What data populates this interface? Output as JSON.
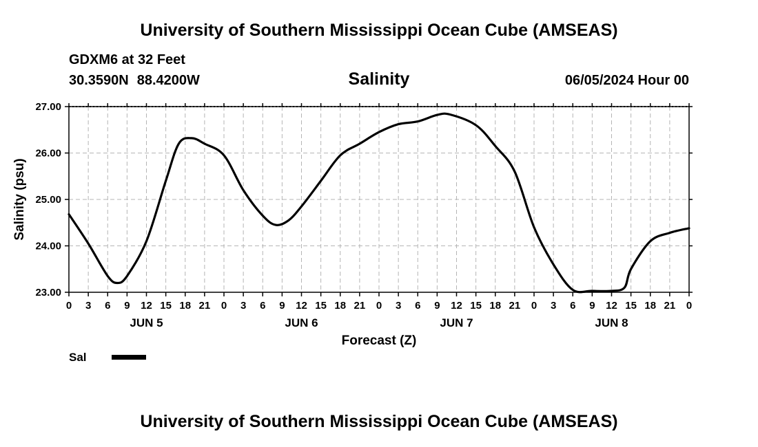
{
  "header": {
    "title_top": "University of Southern Mississippi Ocean Cube (AMSEAS)",
    "station": "GDXM6 at 32 Feet",
    "lat": "30.3590N",
    "lon": "88.4200W",
    "run_time": "06/05/2024 Hour 00",
    "title_bottom": "University of Southern Mississippi Ocean Cube (AMSEAS)"
  },
  "legend": {
    "label": "Sal",
    "color": "#000000"
  },
  "chart_data": {
    "type": "line",
    "title": "Salinity",
    "xlabel": "Forecast (Z)",
    "ylabel": "Salinity (psu)",
    "ylim": [
      23.0,
      27.0
    ],
    "xlim_hours": [
      0,
      96
    ],
    "grid": true,
    "y_ticks": [
      "23.00",
      "24.00",
      "25.00",
      "26.00",
      "27.00"
    ],
    "x_tick_hours": [
      0,
      3,
      6,
      9,
      12,
      15,
      18,
      21,
      24,
      27,
      30,
      33,
      36,
      39,
      42,
      45,
      48,
      51,
      54,
      57,
      60,
      63,
      66,
      69,
      72,
      75,
      78,
      81,
      84,
      87,
      90,
      93,
      96
    ],
    "x_tick_labels": [
      "0",
      "3",
      "6",
      "9",
      "12",
      "15",
      "18",
      "21",
      "0",
      "3",
      "6",
      "9",
      "12",
      "15",
      "18",
      "21",
      "0",
      "3",
      "6",
      "9",
      "12",
      "15",
      "18",
      "21",
      "0",
      "3",
      "6",
      "9",
      "12",
      "15",
      "18",
      "21",
      "0"
    ],
    "day_labels": [
      {
        "label": "JUN 5",
        "hour": 12
      },
      {
        "label": "JUN 6",
        "hour": 36
      },
      {
        "label": "JUN 7",
        "hour": 60
      },
      {
        "label": "JUN 8",
        "hour": 84
      }
    ],
    "series": [
      {
        "name": "Sal",
        "color": "#000000",
        "points": [
          [
            0,
            24.68
          ],
          [
            3,
            24.05
          ],
          [
            6,
            23.35
          ],
          [
            7.5,
            23.2
          ],
          [
            9,
            23.35
          ],
          [
            12,
            24.1
          ],
          [
            15,
            25.4
          ],
          [
            17,
            26.2
          ],
          [
            19,
            26.32
          ],
          [
            21,
            26.2
          ],
          [
            24,
            25.95
          ],
          [
            27,
            25.2
          ],
          [
            30,
            24.65
          ],
          [
            32,
            24.45
          ],
          [
            34,
            24.55
          ],
          [
            36,
            24.85
          ],
          [
            39,
            25.4
          ],
          [
            42,
            25.95
          ],
          [
            45,
            26.2
          ],
          [
            48,
            26.45
          ],
          [
            51,
            26.62
          ],
          [
            54,
            26.68
          ],
          [
            57,
            26.82
          ],
          [
            59,
            26.83
          ],
          [
            63,
            26.6
          ],
          [
            66,
            26.15
          ],
          [
            69,
            25.6
          ],
          [
            72,
            24.4
          ],
          [
            75,
            23.6
          ],
          [
            78,
            23.05
          ],
          [
            81,
            23.03
          ],
          [
            84,
            23.03
          ],
          [
            86,
            23.1
          ],
          [
            87,
            23.5
          ],
          [
            90,
            24.1
          ],
          [
            93,
            24.28
          ],
          [
            96,
            24.38
          ]
        ]
      }
    ]
  }
}
